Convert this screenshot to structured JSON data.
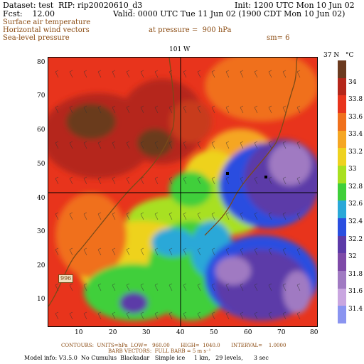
{
  "header": {
    "dataset": "Dataset: test  RIP: rip20020610_d3",
    "init": "Init: 1200 UTC Mon 10 Jun 02",
    "fcst": "Fcst:    12.00",
    "valid": "Valid: 0000 UTC Tue 11 Jun 02 (1900 CDT Mon 10 Jun 02)",
    "field1": "Surface air temperature",
    "field2": "Horizontal wind vectors",
    "field3": "Sea-level pressure",
    "pressure": "at pressure =  900 hPa",
    "sm": "sm= 6"
  },
  "map": {
    "top_lon_label": "101 W",
    "right_lat_label": "37 N",
    "isobar_label": "996",
    "x_ticks": [
      "10",
      "20",
      "30",
      "40",
      "50",
      "60",
      "70",
      "80"
    ],
    "y_ticks": [
      "10",
      "20",
      "30",
      "40",
      "50",
      "60",
      "70",
      "80"
    ]
  },
  "colorbar": {
    "unit": "°C",
    "labels": [
      "34",
      "33.8",
      "33.6",
      "33.4",
      "33.2",
      "33",
      "32.8",
      "32.6",
      "32.4",
      "32.2",
      "32",
      "31.8",
      "31.6",
      "31.4"
    ],
    "colors": [
      "#6b3a1f",
      "#b5261a",
      "#e8341c",
      "#f0701c",
      "#f5a623",
      "#eed21f",
      "#a8e020",
      "#3fcf3a",
      "#2aa8d8",
      "#2a4ee0",
      "#5c3aa8",
      "#7e4aa8",
      "#a07ac2",
      "#c9a6e0",
      "#8a94f0"
    ]
  },
  "footer": {
    "contours": "CONTOURS:  UNITS=hPa  LOW=   960.00       HIGH=  1040.0       INTERVAL=    1.0000",
    "barbs": "BARB VECTORS:  FULL BARB = 5 m s⁻¹",
    "model": "Model info: V3.5.0  No Cumulus  Blackadar   Simple ice     1 km,   29 levels,      3 sec"
  }
}
